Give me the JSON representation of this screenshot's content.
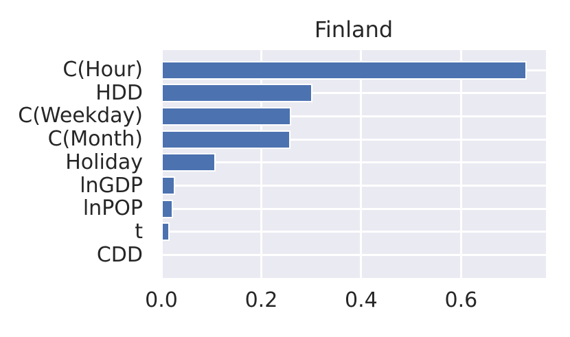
{
  "chart_data": {
    "type": "bar",
    "orientation": "horizontal",
    "title": "Finland",
    "categories": [
      "C(Hour)",
      "HDD",
      "C(Weekday)",
      "C(Month)",
      "Holiday",
      "lnGDP",
      "lnPOP",
      "t",
      "CDD"
    ],
    "values": [
      0.732,
      0.302,
      0.26,
      0.258,
      0.108,
      0.028,
      0.023,
      0.016,
      0.0
    ],
    "xlabel": "",
    "ylabel": "",
    "xticks": [
      0.0,
      0.2,
      0.4,
      0.6
    ],
    "xtick_labels": [
      "0.0",
      "0.2",
      "0.4",
      "0.6"
    ],
    "xlim": [
      0,
      0.77
    ],
    "grid": true,
    "legend": null,
    "colors": {
      "bar": "#4c72b0",
      "bar_edge": "#ffffff",
      "plot_background": "#eaeaf2",
      "gridline": "#ffffff",
      "text": "#262626",
      "figure_background": "#ffffff"
    }
  }
}
